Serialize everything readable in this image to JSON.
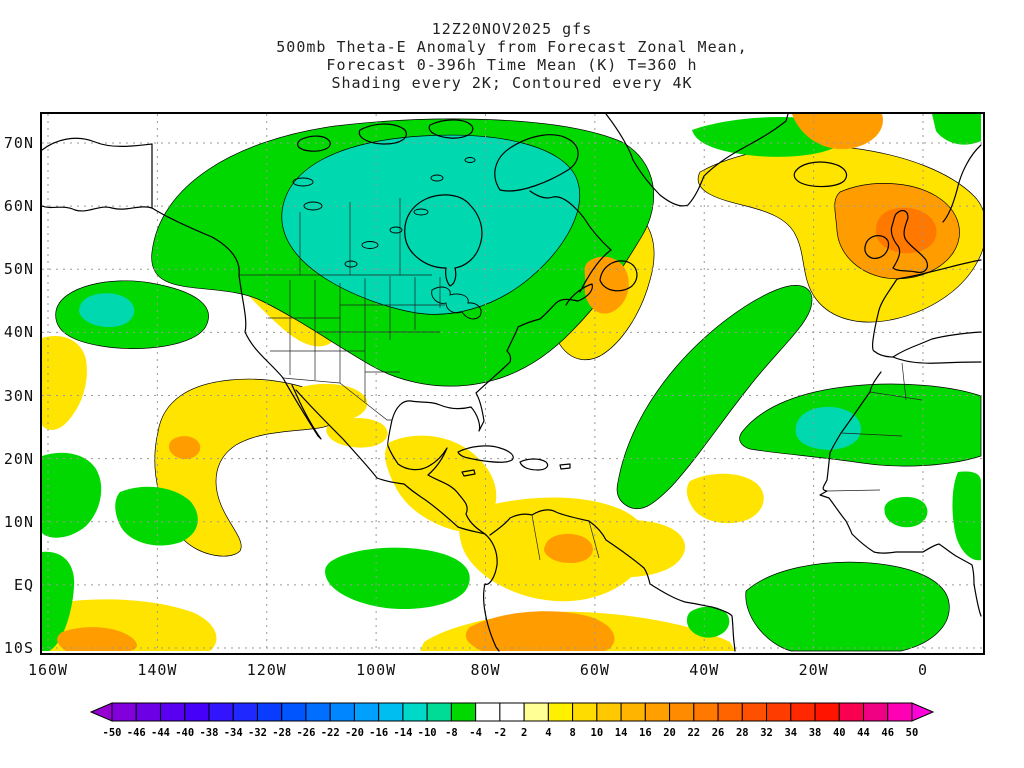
{
  "title": {
    "lines": [
      "12Z20NOV2025 gfs",
      "500mb Theta-E Anomaly from Forecast Zonal Mean,",
      "Forecast 0-396h Time Mean (K) T=360 h",
      "Shading every 2K; Contoured every 4K"
    ]
  },
  "map": {
    "y_axis_labels": [
      "70N",
      "60N",
      "50N",
      "40N",
      "30N",
      "20N",
      "10N",
      "EQ",
      "10S"
    ],
    "x_axis_labels": [
      "160W",
      "140W",
      "120W",
      "100W",
      "80W",
      "60W",
      "40W",
      "20W",
      "0"
    ]
  },
  "figure": {
    "model": "gfs",
    "init_time": "12Z20NOV2025",
    "level": "500mb",
    "variable": "Theta-E Anomaly from Forecast Zonal Mean",
    "units": "K",
    "forecast_span": "0-396h",
    "time_mean": "T=360 h",
    "shading_interval": "2K",
    "contour_interval": "4K",
    "anomaly_regions": [
      {
        "area": "central/eastern Canada into Great Lakes",
        "sign": "negative",
        "approx_K": "-4 to -14",
        "shade": "green with teal core"
      },
      {
        "area": "NE Pacific near 40N 150W",
        "sign": "negative",
        "approx_K": "-4 to -10",
        "shade": "green/teal"
      },
      {
        "area": "Labrador / Newfoundland / NW Atlantic",
        "sign": "positive",
        "approx_K": "+4 to +12",
        "shade": "yellow with orange core"
      },
      {
        "area": "British Isles / NE Atlantic",
        "sign": "positive",
        "approx_K": "+8 to +20",
        "shade": "yellow with orange core"
      },
      {
        "area": "central subtropical Atlantic swath",
        "sign": "negative",
        "approx_K": "-4 to -8",
        "shade": "green"
      },
      {
        "area": "NW Africa / Canaries",
        "sign": "negative",
        "approx_K": "-4 to -12",
        "shade": "green with teal core"
      },
      {
        "area": "subtropical NE Pacific off Mexico",
        "sign": "positive",
        "approx_K": "+4 to +8",
        "shade": "yellow"
      },
      {
        "area": "northern South America / deep tropics",
        "sign": "positive",
        "approx_K": "+4 to +16",
        "shade": "yellow with orange cores"
      },
      {
        "area": "tropical South Atlantic",
        "sign": "negative",
        "approx_K": "-4 to -8",
        "shade": "green"
      }
    ]
  },
  "palette": {
    "green": "#00d800",
    "teal": "#00d8b0",
    "yellow": "#ffe400",
    "orange": "#ff9c00",
    "deep_orange": "#ff7800"
  },
  "colorbar": {
    "labels": [
      "-50",
      "-46",
      "-44",
      "-40",
      "-38",
      "-34",
      "-32",
      "-28",
      "-26",
      "-22",
      "-20",
      "-16",
      "-14",
      "-10",
      "-8",
      "-4",
      "-2",
      "2",
      "4",
      "8",
      "10",
      "14",
      "16",
      "20",
      "22",
      "26",
      "28",
      "32",
      "34",
      "38",
      "40",
      "44",
      "46",
      "50"
    ],
    "segment_colors": [
      "#8200dc",
      "#6e00e6",
      "#5a00f0",
      "#4600fa",
      "#3214ff",
      "#1e28ff",
      "#0a3cff",
      "#0055ff",
      "#006eff",
      "#0087ff",
      "#00a0ff",
      "#00bef0",
      "#00d8c8",
      "#00dc96",
      "#00d800",
      "#ffffff",
      "#ffffff",
      "#ffff96",
      "#fff000",
      "#ffdc00",
      "#ffc800",
      "#ffb400",
      "#ffa000",
      "#ff8c00",
      "#ff7800",
      "#ff6400",
      "#ff5000",
      "#ff3c00",
      "#ff2800",
      "#ff1400",
      "#fa0050",
      "#f00082",
      "#ff00b4"
    ],
    "arrow_left_color": "#9600d2",
    "arrow_right_color": "#ff00dc"
  }
}
